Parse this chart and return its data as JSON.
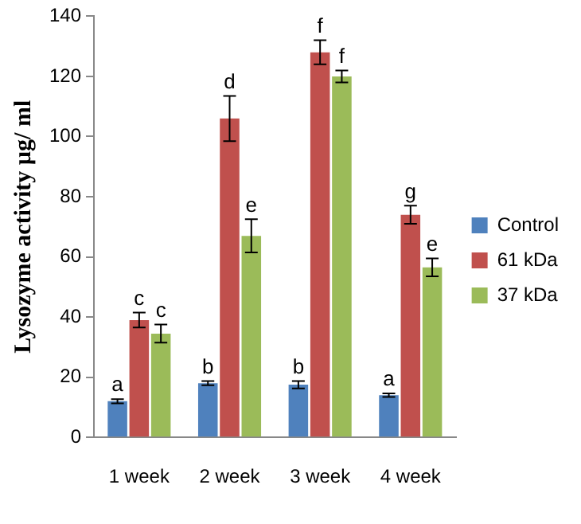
{
  "chart_data": {
    "type": "bar",
    "ylabel": "Lysozyme activity µg/ ml",
    "categories": [
      "1 week",
      "2 week",
      "3 week",
      "4 week"
    ],
    "series": [
      {
        "name": "Control",
        "color": "#4f81bd",
        "values": [
          12,
          18,
          17.5,
          14
        ],
        "errors": [
          0.7,
          0.7,
          1.2,
          0.6
        ],
        "value_labels": [
          "a",
          "b",
          "b",
          "a"
        ]
      },
      {
        "name": "61 kDa",
        "color": "#c0504d",
        "values": [
          39,
          106,
          128,
          74
        ],
        "errors": [
          2.5,
          7.5,
          4,
          3
        ],
        "value_labels": [
          "c",
          "d",
          "f",
          "g"
        ]
      },
      {
        "name": "37 kDa",
        "color": "#9bbb59",
        "values": [
          34.5,
          67,
          120,
          56.5
        ],
        "errors": [
          3,
          5.5,
          2,
          3
        ],
        "value_labels": [
          "c",
          "e",
          "f",
          "e"
        ]
      }
    ],
    "ylim": [
      0,
      140
    ],
    "yticks": [
      0,
      20,
      40,
      60,
      80,
      100,
      120,
      140
    ],
    "grid": false,
    "legend": "right"
  }
}
